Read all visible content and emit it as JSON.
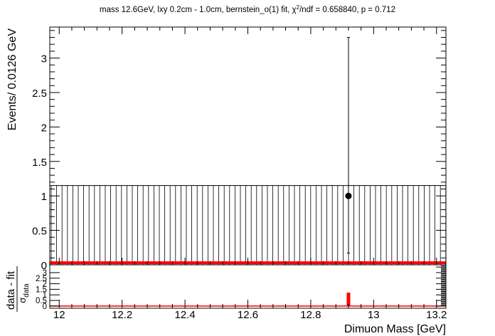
{
  "chart_data": [
    {
      "type": "scatter",
      "title": "mass 12.6GeV, lxy 0.2cm - 1.0cm, bernstein_o(1) fit, χ²/ndf = 0.658840, p = 0.712",
      "title_parts": {
        "pre": "mass 12.6GeV, lxy 0.2cm - 1.0cm, bernstein_o(1) fit, χ",
        "sup": "2",
        "post": "/ndf = 0.658840, p = 0.712"
      },
      "ylabel": "Events/ 0.0126 GeV",
      "xlim": [
        11.97,
        13.23
      ],
      "ylim": [
        0,
        3.45
      ],
      "yticks": [
        0,
        0.5,
        1,
        1.5,
        2,
        2.5,
        3
      ],
      "ytick_labels": [
        "0",
        "0.5",
        "1",
        "1.5",
        "2",
        "2.5",
        "3"
      ],
      "grid": false,
      "series": [
        {
          "kind": "data-points",
          "points": [
            {
              "x": 12.92,
              "y": 1.0,
              "yerr_low": 0.83,
              "yerr_high": 2.3
            }
          ],
          "color": "#000000"
        },
        {
          "kind": "fit-curve",
          "x": [
            11.97,
            13.23
          ],
          "y": [
            0.02,
            0.02
          ],
          "color": "#ff0000"
        },
        {
          "kind": "uncertainty-band",
          "y_low": 0,
          "y_high": 1.15,
          "hatch": "vertical",
          "color": "#000000"
        }
      ]
    },
    {
      "type": "bar",
      "ylabel_num": "data - fit",
      "ylabel_den": "σ",
      "ylabel_den_sub": "data",
      "xlabel": "Dimuon Mass [GeV]",
      "xlim": [
        11.97,
        13.23
      ],
      "ylim": [
        -0.2,
        3.7
      ],
      "xticks": [
        12,
        12.2,
        12.4,
        12.6,
        12.8,
        13,
        13.2
      ],
      "xtick_labels": [
        "12",
        "12.2",
        "12.4",
        "12.6",
        "12.8",
        "13",
        "13.2"
      ],
      "yticks": [
        0,
        0.5,
        1,
        1.5,
        2,
        2.5,
        3
      ],
      "ytick_labels": [
        "0",
        "0.5",
        "1",
        "1.5",
        "2",
        "2.5",
        "3"
      ],
      "series": [
        {
          "kind": "pull",
          "x": [
            12.92
          ],
          "values": [
            1.2
          ],
          "color": "#ff0000"
        }
      ]
    }
  ]
}
